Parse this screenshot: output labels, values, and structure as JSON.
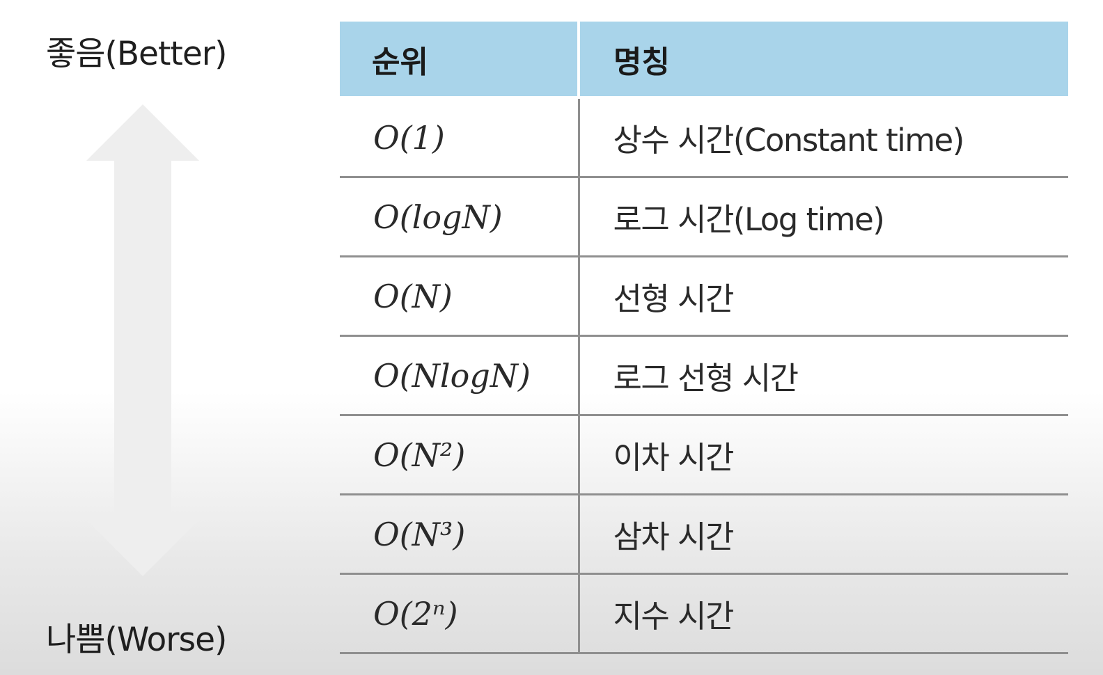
{
  "labels": {
    "better": "좋음(Better)",
    "worse": "나쁨(Worse)"
  },
  "table": {
    "headers": {
      "rank": "순위",
      "name": "명칭"
    },
    "rows": [
      {
        "rank": "O(1)",
        "name": "상수 시간(Constant time)"
      },
      {
        "rank": "O(logN)",
        "name": "로그 시간(Log time)"
      },
      {
        "rank": "O(N)",
        "name": "선형 시간"
      },
      {
        "rank": "O(NlogN)",
        "name": "로그 선형 시간"
      },
      {
        "rank": "O(N²)",
        "name": "이차 시간"
      },
      {
        "rank": "O(N³)",
        "name": "삼차 시간"
      },
      {
        "rank": "O(2ⁿ)",
        "name": "지수 시간"
      }
    ]
  },
  "colors": {
    "header_background": "#a9d4ea",
    "arrow": "#eeeeee",
    "rule": "#8f8f8f"
  },
  "icons": {
    "arrow": "double-headed-vertical-arrow-icon"
  }
}
